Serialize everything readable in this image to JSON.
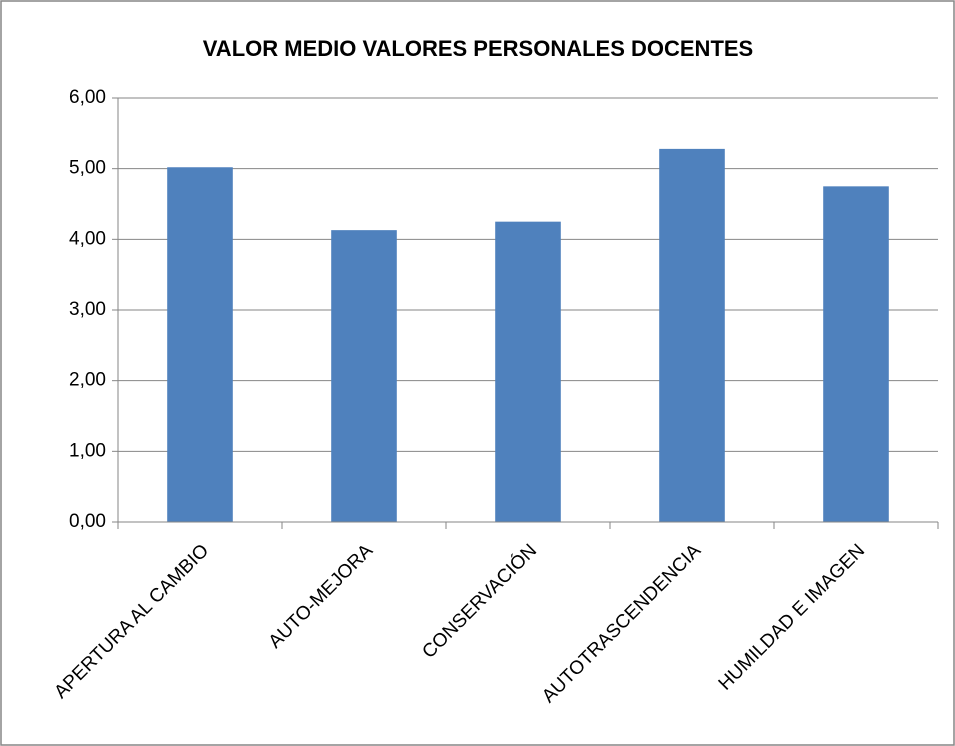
{
  "chart_data": {
    "type": "bar",
    "title": "VALOR MEDIO VALORES PERSONALES DOCENTES",
    "categories": [
      "APERTURA AL CAMBIO",
      "AUTO-MEJORA",
      "CONSERVACIÓN",
      "AUTOTRASCENDENCIA",
      "HUMILDAD E IMAGEN"
    ],
    "values": [
      5.02,
      4.13,
      4.25,
      5.28,
      4.75
    ],
    "color": "#4f81bd",
    "ylim": [
      0,
      6
    ],
    "yticks": [
      {
        "value": 0,
        "label": "0,00"
      },
      {
        "value": 1,
        "label": "1,00"
      },
      {
        "value": 2,
        "label": "2,00"
      },
      {
        "value": 3,
        "label": "3,00"
      },
      {
        "value": 4,
        "label": "4,00"
      },
      {
        "value": 5,
        "label": "5,00"
      },
      {
        "value": 6,
        "label": "6,00"
      }
    ],
    "grid": true
  }
}
